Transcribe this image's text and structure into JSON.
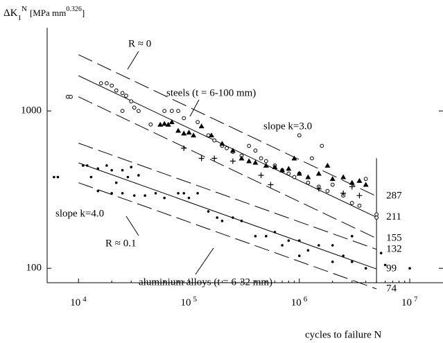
{
  "chart_data": {
    "type": "scatter",
    "log_x": true,
    "log_y": true,
    "xlim": [
      5200,
      20000000
    ],
    "ylim": [
      81,
      3380
    ],
    "xticks": [
      {
        "value": 10000,
        "label": "10",
        "exponent": "4"
      },
      {
        "value": 100000,
        "label": "10",
        "exponent": "5"
      },
      {
        "value": 1000000,
        "label": "10",
        "exponent": "6"
      },
      {
        "value": 10000000,
        "label": "10",
        "exponent": "7"
      }
    ],
    "yticks": [
      100,
      1000
    ],
    "xlabel": "cycles to failure  N",
    "ylabel": {
      "symbol": "ΔK",
      "sub": "1",
      "sup": "N",
      "unit": "[MPa  mm",
      "unit_exp": "0.326",
      "close": "]"
    },
    "annotations": {
      "r0": "R ≈ 0",
      "steels": "steels (t = 6-100 mm)",
      "slope3": "slope k=3.0",
      "slope4": "slope k=4.0",
      "r01": "R ≈ 0.1",
      "aluminium": "aluminium alloys (t = 6-32 mm)"
    },
    "reference_n": 5000000,
    "reference_values": [
      287,
      211,
      155,
      132,
      99,
      74
    ],
    "lines": [
      {
        "style": "dashed",
        "x": [
          10000,
          5000000
        ],
        "values": [
          2278,
          287
        ]
      },
      {
        "style": "solid",
        "x": [
          10000,
          5000000
        ],
        "values": [
          1675,
          211
        ]
      },
      {
        "style": "dashed",
        "x": [
          10000,
          5000000
        ],
        "values": [
          1230,
          155
        ]
      },
      {
        "style": "dashed",
        "x": [
          10000,
          5000000
        ],
        "values": [
          624,
          132
        ]
      },
      {
        "style": "solid",
        "x": [
          10000,
          5000000
        ],
        "values": [
          468,
          99
        ]
      },
      {
        "style": "dashed",
        "x": [
          10000,
          5000000
        ],
        "values": [
          350,
          74
        ]
      }
    ],
    "series": [
      {
        "marker": "open-circle",
        "color": "#000000",
        "x": [
          8000,
          8500,
          16000,
          18000,
          20000,
          22000,
          25000,
          27000,
          30000,
          32000,
          35000,
          25000,
          45000,
          60000,
          70000,
          80000,
          90000,
          120000,
          150000,
          170000,
          200000,
          220000,
          250000,
          300000,
          350000,
          400000,
          450000,
          500000,
          600000,
          700000,
          800000,
          900000,
          1000000,
          1200000,
          1500000,
          1800000,
          2000000,
          2500000,
          3000000,
          3500000,
          4000000,
          5000000,
          5000000,
          1300000,
          1000000,
          1600000
        ],
        "values": [
          1230,
          1230,
          1500,
          1500,
          1450,
          1350,
          1300,
          1250,
          1150,
          1050,
          1000,
          1000,
          820,
          1000,
          1000,
          1000,
          900,
          850,
          700,
          650,
          600,
          580,
          550,
          520,
          600,
          560,
          500,
          480,
          450,
          420,
          400,
          380,
          400,
          350,
          330,
          310,
          340,
          290,
          260,
          250,
          370,
          220,
          210,
          500,
          700,
          600
        ]
      },
      {
        "marker": "triangle",
        "color": "#000000",
        "x": [
          55000,
          60000,
          65000,
          70000,
          80000,
          90000,
          100000,
          110000,
          130000,
          160000,
          200000,
          250000,
          300000,
          350000,
          400000,
          500000,
          600000,
          700000,
          800000,
          1000000,
          1200000,
          1500000,
          2000000,
          2500000,
          3000000,
          3500000,
          4000000,
          1800000,
          900000
        ],
        "values": [
          820,
          830,
          820,
          850,
          750,
          720,
          730,
          700,
          800,
          700,
          620,
          560,
          500,
          480,
          470,
          450,
          440,
          420,
          430,
          400,
          380,
          400,
          370,
          380,
          350,
          360,
          340,
          450,
          500
        ]
      },
      {
        "marker": "cross",
        "color": "#000000",
        "x": [
          90000,
          130000,
          170000,
          250000,
          450000,
          550000,
          1500000,
          2500000,
          3000000,
          3500000
        ],
        "values": [
          580,
          500,
          500,
          480,
          390,
          340,
          320,
          300,
          330,
          290
        ]
      },
      {
        "marker": "dot",
        "color": "#000000",
        "x": [
          6000,
          6500,
          11000,
          12000,
          15000,
          18000,
          20000,
          25000,
          30000,
          13000,
          22000,
          28000,
          35000,
          15000,
          20000,
          25000,
          32000,
          40000,
          50000,
          60000,
          80000,
          90000,
          100000,
          120000,
          150000,
          180000,
          200000,
          250000,
          300000,
          400000,
          500000,
          600000,
          700000,
          800000,
          1000000,
          1200000,
          1500000,
          2000000,
          2500000,
          3000000,
          4000000,
          5500000,
          6000000,
          10000000,
          3000000,
          2000000,
          1000000
        ],
        "values": [
          380,
          380,
          450,
          450,
          430,
          450,
          420,
          420,
          440,
          380,
          350,
          380,
          390,
          310,
          300,
          300,
          290,
          290,
          300,
          280,
          300,
          300,
          280,
          300,
          230,
          210,
          200,
          210,
          200,
          160,
          160,
          170,
          140,
          150,
          150,
          130,
          140,
          140,
          120,
          110,
          100,
          125,
          105,
          100,
          160,
          110,
          120
        ]
      }
    ]
  }
}
